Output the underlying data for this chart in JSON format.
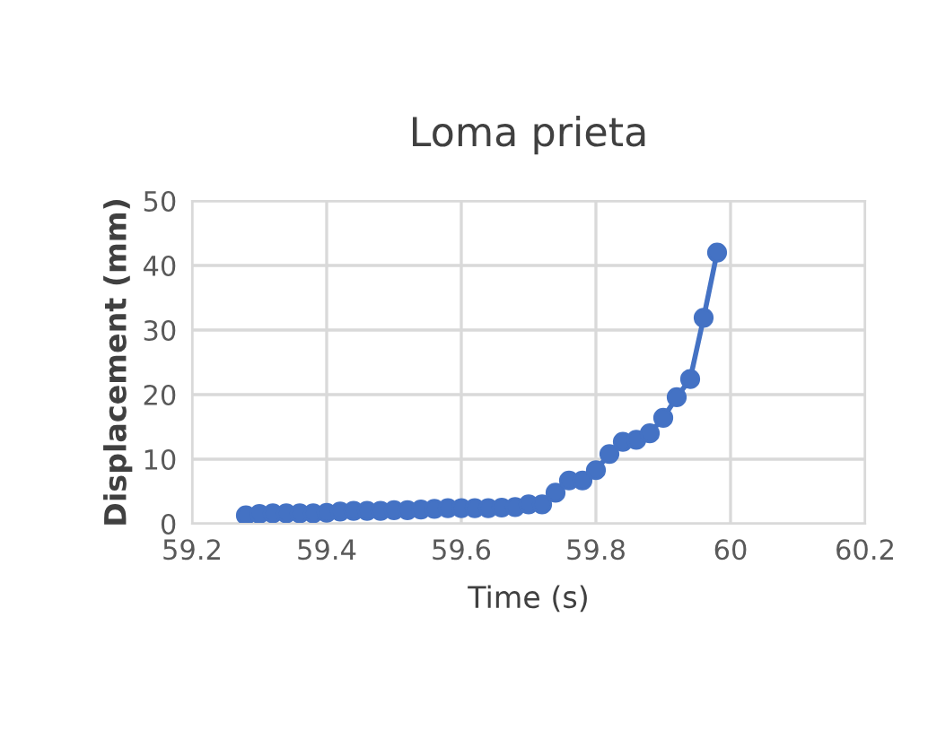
{
  "chart_data": {
    "type": "line",
    "title": "Loma prieta",
    "xlabel": "Time (s)",
    "ylabel": "Displacement (mm)",
    "x": [
      59.28,
      59.3,
      59.32,
      59.34,
      59.36,
      59.38,
      59.4,
      59.42,
      59.44,
      59.46,
      59.48,
      59.5,
      59.52,
      59.54,
      59.56,
      59.58,
      59.6,
      59.62,
      59.64,
      59.66,
      59.68,
      59.7,
      59.72,
      59.74,
      59.76,
      59.78,
      59.8,
      59.82,
      59.84,
      59.86,
      59.88,
      59.9,
      59.92,
      59.94,
      59.96,
      59.98
    ],
    "series": [
      {
        "color": "#4472c4",
        "values": [
          1.3,
          1.5,
          1.6,
          1.6,
          1.6,
          1.6,
          1.7,
          1.9,
          2.0,
          2.0,
          2.0,
          2.1,
          2.1,
          2.2,
          2.3,
          2.4,
          2.4,
          2.4,
          2.4,
          2.5,
          2.6,
          3.0,
          3.0,
          4.8,
          6.7,
          6.7,
          8.3,
          10.8,
          12.7,
          13.0,
          14.0,
          16.4,
          19.6,
          22.4,
          31.9,
          42.0
        ]
      }
    ],
    "xlim": [
      59.2,
      60.2
    ],
    "xticks": [
      59.2,
      59.4,
      59.6,
      59.8,
      60,
      60.2
    ],
    "ylim": [
      0,
      50
    ],
    "yticks": [
      0,
      10,
      20,
      30,
      40,
      50
    ],
    "grid": true,
    "marker": "circle",
    "line_style": "solid"
  }
}
